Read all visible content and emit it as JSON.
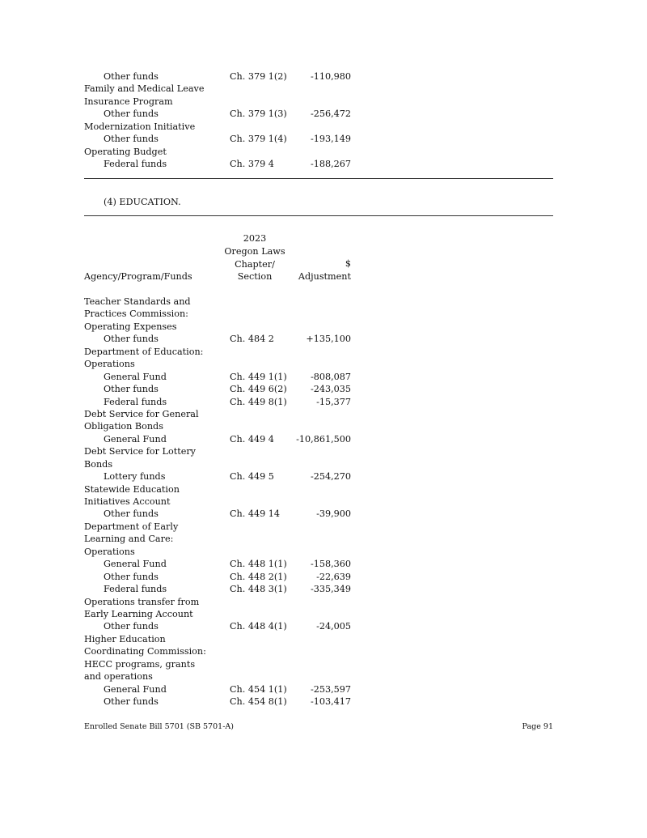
{
  "top_rows": [
    {
      "label": "Other funds",
      "indent": true,
      "chapter": "Ch. 379 1(2)",
      "amount": "-110,980"
    },
    {
      "label": "Family and Medical Leave",
      "indent": false
    },
    {
      "label": "Insurance Program",
      "indent": false
    },
    {
      "label": "Other funds",
      "indent": true,
      "chapter": "Ch. 379 1(3)",
      "amount": "-256,472"
    },
    {
      "label": "Modernization Initiative",
      "indent": false
    },
    {
      "label": "Other funds",
      "indent": true,
      "chapter": "Ch. 379 1(4)",
      "amount": "-193,149"
    },
    {
      "label": "Operating Budget",
      "indent": false
    },
    {
      "label": "Federal funds",
      "indent": true,
      "chapter": "Ch. 379 4",
      "amount": "-188,267"
    }
  ],
  "section_title": "(4) EDUCATION.",
  "header": {
    "col1": "Agency/Program/Funds",
    "col2": [
      "2023",
      "Oregon Laws",
      "Chapter/",
      "Section"
    ],
    "col3": [
      "$",
      "Adjustment"
    ]
  },
  "rows": [
    {
      "label": "Teacher Standards and",
      "indent": false
    },
    {
      "label": "Practices Commission:",
      "indent": false
    },
    {
      "label": "Operating Expenses",
      "indent": false
    },
    {
      "label": "Other funds",
      "indent": true,
      "chapter": "Ch. 484 2",
      "amount": "+135,100"
    },
    {
      "label": "Department of Education:",
      "indent": false
    },
    {
      "label": "Operations",
      "indent": false
    },
    {
      "label": "General Fund",
      "indent": true,
      "chapter": "Ch. 449 1(1)",
      "amount": "-808,087"
    },
    {
      "label": "Other funds",
      "indent": true,
      "chapter": "Ch. 449 6(2)",
      "amount": "-243,035"
    },
    {
      "label": "Federal funds",
      "indent": true,
      "chapter": "Ch. 449 8(1)",
      "amount": "-15,377"
    },
    {
      "label": "Debt Service for General",
      "indent": false
    },
    {
      "label": "Obligation Bonds",
      "indent": false
    },
    {
      "label": "General Fund",
      "indent": true,
      "chapter": "Ch. 449 4",
      "amount": "-10,861,500"
    },
    {
      "label": "Debt Service for Lottery",
      "indent": false
    },
    {
      "label": "Bonds",
      "indent": false
    },
    {
      "label": "Lottery funds",
      "indent": true,
      "chapter": "Ch. 449 5",
      "amount": "-254,270"
    },
    {
      "label": "Statewide Education",
      "indent": false
    },
    {
      "label": "Initiatives Account",
      "indent": false
    },
    {
      "label": "Other funds",
      "indent": true,
      "chapter": "Ch. 449 14",
      "amount": "-39,900"
    },
    {
      "label": "Department of Early",
      "indent": false
    },
    {
      "label": "Learning and Care:",
      "indent": false
    },
    {
      "label": "Operations",
      "indent": false
    },
    {
      "label": "General Fund",
      "indent": true,
      "chapter": "Ch. 448 1(1)",
      "amount": "-158,360"
    },
    {
      "label": "Other funds",
      "indent": true,
      "chapter": "Ch. 448 2(1)",
      "amount": "-22,639"
    },
    {
      "label": "Federal funds",
      "indent": true,
      "chapter": "Ch. 448 3(1)",
      "amount": "-335,349"
    },
    {
      "label": "Operations transfer from",
      "indent": false
    },
    {
      "label": "Early Learning Account",
      "indent": false
    },
    {
      "label": "Other funds",
      "indent": true,
      "chapter": "Ch. 448 4(1)",
      "amount": "-24,005"
    },
    {
      "label": "Higher Education",
      "indent": false
    },
    {
      "label": "Coordinating Commission:",
      "indent": false
    },
    {
      "label": "HECC programs, grants",
      "indent": false
    },
    {
      "label": "and operations",
      "indent": false
    },
    {
      "label": "General Fund",
      "indent": true,
      "chapter": "Ch. 454 1(1)",
      "amount": "-253,597"
    },
    {
      "label": "Other funds",
      "indent": true,
      "chapter": "Ch. 454 8(1)",
      "amount": "-103,417"
    }
  ],
  "footer": {
    "left": "Enrolled Senate Bill 5701 (SB 5701-A)",
    "right": "Page 91"
  }
}
